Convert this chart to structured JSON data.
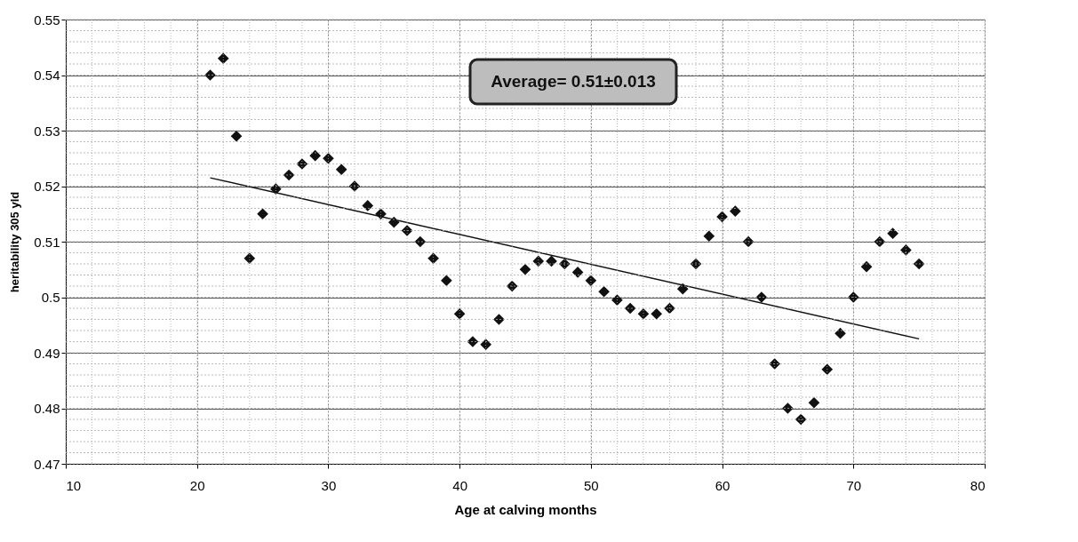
{
  "chart_data": {
    "type": "scatter",
    "xlabel": "Age at calving months",
    "ylabel": "heritability 305 yld",
    "annotations": [
      "Average= 0.51±0.013"
    ],
    "xlim": [
      10,
      80
    ],
    "xticks": [
      10,
      20,
      30,
      40,
      50,
      60,
      70,
      80
    ],
    "ylim": [
      0.47,
      0.55
    ],
    "yticks": [
      0.47,
      0.48,
      0.49,
      0.5,
      0.51,
      0.52,
      0.53,
      0.54,
      0.55
    ],
    "grid": true,
    "series": [
      {
        "type": "scatter",
        "marker": "diamond",
        "color": "#111111",
        "x": [
          21,
          22,
          23,
          24,
          25,
          26,
          27,
          28,
          29,
          30,
          31,
          32,
          33,
          34,
          35,
          36,
          37,
          38,
          39,
          40,
          41,
          42,
          43,
          44,
          45,
          46,
          47,
          48,
          49,
          50,
          51,
          52,
          53,
          54,
          55,
          56,
          57,
          58,
          59,
          60,
          61,
          62,
          63,
          64,
          65,
          66,
          67,
          68,
          69,
          70,
          71,
          72,
          73,
          74,
          75
        ],
        "values": [
          0.54,
          0.543,
          0.529,
          0.507,
          0.515,
          0.5195,
          0.522,
          0.524,
          0.5255,
          0.525,
          0.523,
          0.52,
          0.5165,
          0.515,
          0.5135,
          0.512,
          0.51,
          0.507,
          0.503,
          0.497,
          0.492,
          0.4915,
          0.496,
          0.502,
          0.505,
          0.5065,
          0.5065,
          0.506,
          0.5045,
          0.503,
          0.501,
          0.4995,
          0.498,
          0.497,
          0.497,
          0.498,
          0.5015,
          0.506,
          0.511,
          0.5145,
          0.5155,
          0.51,
          0.5,
          0.488,
          0.48,
          0.478,
          0.481,
          0.487,
          0.4935,
          0.5,
          0.5055,
          0.51,
          0.5115,
          0.5085,
          0.506
        ]
      },
      {
        "type": "line",
        "marker": "none",
        "color": "#111111",
        "x": [
          21,
          75
        ],
        "values": [
          0.5215,
          0.4925
        ]
      }
    ]
  }
}
